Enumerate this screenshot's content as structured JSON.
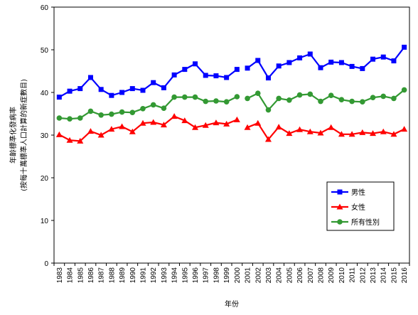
{
  "chart_data": {
    "type": "line",
    "title": "",
    "xlabel": "年份",
    "ylabel_lines": [
      "年齡標準化發病率",
      "(按每十萬標準人口計算的新症數目)"
    ],
    "ylim": [
      0,
      60
    ],
    "yticks": [
      0,
      10,
      20,
      30,
      40,
      50,
      60
    ],
    "x": [
      "1983",
      "1984",
      "1985",
      "1986",
      "1987",
      "1988",
      "1989",
      "1990",
      "1991",
      "1992",
      "1993",
      "1994",
      "1995",
      "1996",
      "1997",
      "1998",
      "1999",
      "2000",
      "2001",
      "2002",
      "2003",
      "2004",
      "2005",
      "2006",
      "2007",
      "2008",
      "2009",
      "2010",
      "2011",
      "2012",
      "2013",
      "2014",
      "2015",
      "2016"
    ],
    "gap_after": "2000",
    "legend_position": "bottom-right",
    "series": [
      {
        "name": "男性",
        "color": "#0000ff",
        "marker": "square",
        "values": [
          38.9,
          40.3,
          40.9,
          43.5,
          40.7,
          39.3,
          40.0,
          40.9,
          40.5,
          42.3,
          41.1,
          44.1,
          45.4,
          46.7,
          44.0,
          43.9,
          43.5,
          45.4,
          45.7,
          47.5,
          43.4,
          46.2,
          47.0,
          48.1,
          49.0,
          45.8,
          47.1,
          47.0,
          46.1,
          45.6,
          47.8,
          48.3,
          47.4,
          50.6
        ]
      },
      {
        "name": "女性",
        "color": "#ff0000",
        "marker": "triangle",
        "values": [
          30.1,
          28.8,
          28.6,
          30.9,
          30.0,
          31.4,
          32.0,
          30.8,
          32.8,
          33.0,
          32.4,
          34.4,
          33.4,
          31.8,
          32.3,
          32.9,
          32.6,
          33.6,
          31.8,
          32.8,
          29.0,
          31.9,
          30.4,
          31.3,
          30.8,
          30.5,
          31.8,
          30.2,
          30.2,
          30.6,
          30.4,
          30.8,
          30.2,
          31.4
        ]
      },
      {
        "name": "所有性別",
        "color": "#339933",
        "marker": "circle",
        "values": [
          34.0,
          33.8,
          34.0,
          35.6,
          34.7,
          34.9,
          35.4,
          35.3,
          36.2,
          37.1,
          36.3,
          38.9,
          38.9,
          38.9,
          37.9,
          38.0,
          37.8,
          39.0,
          38.6,
          39.8,
          35.9,
          38.6,
          38.2,
          39.4,
          39.6,
          37.9,
          39.3,
          38.3,
          37.9,
          37.8,
          38.8,
          39.1,
          38.6,
          40.6
        ]
      }
    ]
  }
}
